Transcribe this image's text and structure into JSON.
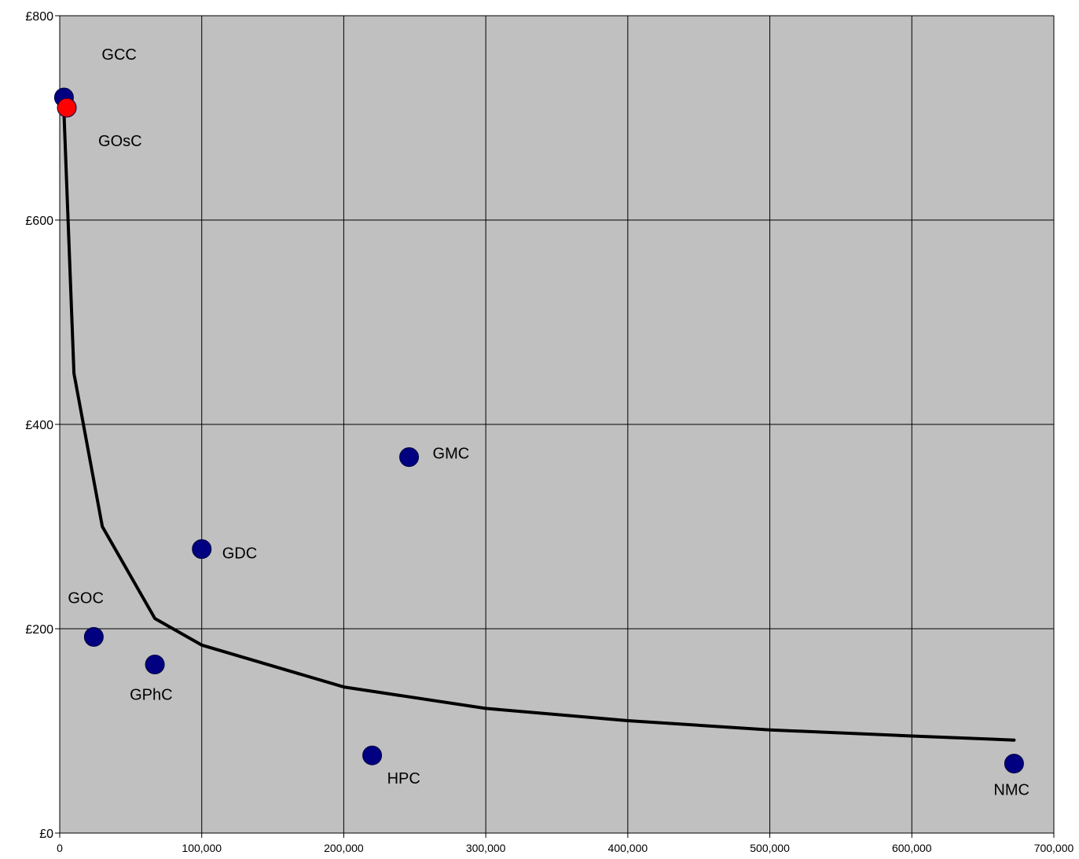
{
  "chart_data": {
    "type": "scatter",
    "title": "",
    "xlabel": "",
    "ylabel": "",
    "xlim": [
      0,
      700000
    ],
    "ylim": [
      0,
      800
    ],
    "grid": true,
    "legend": "none",
    "x_ticks": [
      0,
      100000,
      200000,
      300000,
      400000,
      500000,
      600000,
      700000
    ],
    "x_tick_labels": [
      "0",
      "100,000",
      "200,000",
      "300,000",
      "400,000",
      "500,000",
      "600,000",
      "700,000"
    ],
    "y_ticks": [
      0,
      200,
      400,
      600,
      800
    ],
    "y_tick_labels": [
      "£0",
      "£200",
      "£400",
      "£600",
      "£800"
    ],
    "points": [
      {
        "label": "GCC",
        "x": 3000,
        "y": 720,
        "color": "#000080"
      },
      {
        "label": "GOsC",
        "x": 5000,
        "y": 710,
        "color": "#ff0000"
      },
      {
        "label": "GOC",
        "x": 24000,
        "y": 192,
        "color": "#000080"
      },
      {
        "label": "GPhC",
        "x": 67000,
        "y": 165,
        "color": "#000080"
      },
      {
        "label": "GDC",
        "x": 100000,
        "y": 278,
        "color": "#000080"
      },
      {
        "label": "HPC",
        "x": 220000,
        "y": 76,
        "color": "#000080"
      },
      {
        "label": "GMC",
        "x": 246000,
        "y": 368,
        "color": "#000080"
      },
      {
        "label": "NMC",
        "x": 672000,
        "y": 68,
        "color": "#000080"
      }
    ],
    "trendline": {
      "type": "power",
      "x_range": [
        3000,
        672000
      ],
      "points": [
        {
          "x": 3000,
          "y": 705
        },
        {
          "x": 10000,
          "y": 450
        },
        {
          "x": 30000,
          "y": 300
        },
        {
          "x": 67000,
          "y": 210
        },
        {
          "x": 100000,
          "y": 184
        },
        {
          "x": 200000,
          "y": 143
        },
        {
          "x": 300000,
          "y": 122
        },
        {
          "x": 400000,
          "y": 110
        },
        {
          "x": 500000,
          "y": 101
        },
        {
          "x": 600000,
          "y": 95
        },
        {
          "x": 672000,
          "y": 91
        }
      ],
      "color": "#000000"
    },
    "colors": {
      "plot_background": "#c0c0c0",
      "grid": "#000000",
      "point_default": "#000080",
      "point_highlight": "#ff0000"
    }
  }
}
